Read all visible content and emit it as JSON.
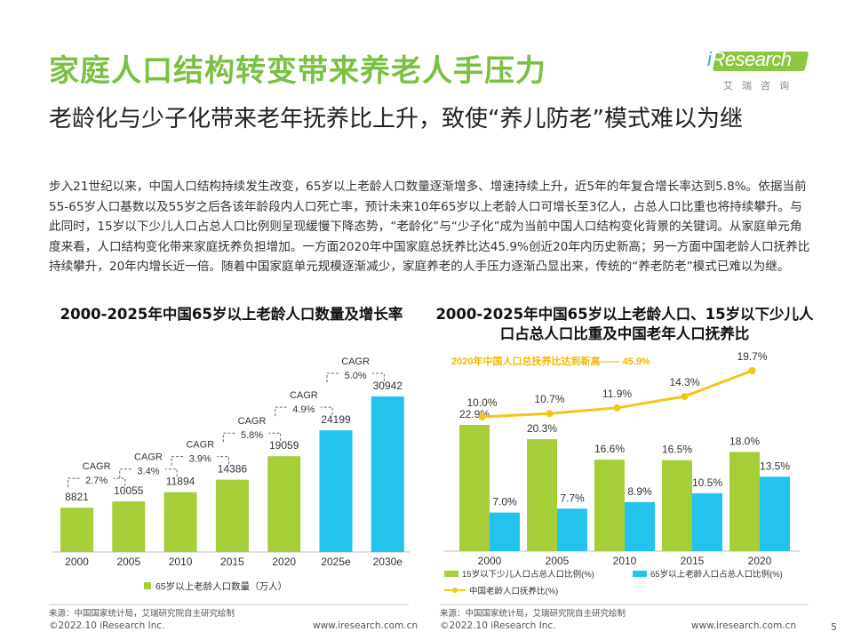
{
  "header": {
    "title": "家庭人口结构转变带来养老人手压力",
    "subtitle": "老龄化与少子化带来老年抚养比上升，致使“养儿防老”模式难以为继"
  },
  "logo": {
    "brand_i": "i",
    "brand_rest": "Research",
    "cn": "艾瑞咨询"
  },
  "body_paragraph": "步入21世纪以来，中国人口结构持续发生改变，65岁以上老龄人口数量逐渐增多、增速持续上升，近5年的年复合增长率达到5.8%。依据当前55-65岁人口基数以及55岁之后各该年龄段内人口死亡率，预计未来10年65岁以上老龄人口可增长至3亿人，占总人口比重也将持续攀升。与此同时，15岁以下少儿人口占总人口比例则呈现缓慢下降态势，“老龄化”与“少子化”成为当前中国人口结构变化背景的关键词。从家庭单元角度来看，人口结构变化带来家庭抚养负担增加。一方面2020年中国家庭总抚养比达45.9%创近20年内历史新高；另一方面中国老龄人口抚养比持续攀升，20年内增长近一倍。随着中国家庭单元规模逐渐减少，家庭养老的人手压力逐渐凸显出来，传统的“养老防老”模式已难以为继。",
  "chart_data": [
    {
      "type": "bar",
      "title": "2000-2025年中国65岁以上老龄人口数量及增长率",
      "categories": [
        "2000",
        "2005",
        "2010",
        "2015",
        "2020",
        "2025e",
        "2030e"
      ],
      "series": [
        {
          "name": "65岁以上老龄人口数量（万人）",
          "values": [
            8821,
            10055,
            11894,
            14386,
            19059,
            24199,
            30942
          ]
        }
      ],
      "estimate_from_index": 5,
      "cagr": [
        {
          "label": "CAGR",
          "value": "2.7%"
        },
        {
          "label": "CAGR",
          "value": "3.4%"
        },
        {
          "label": "CAGR",
          "value": "3.9%"
        },
        {
          "label": "CAGR",
          "value": "5.8%"
        },
        {
          "label": "CAGR",
          "value": "4.9%"
        },
        {
          "label": "CAGR",
          "value": "5.0%"
        }
      ],
      "ylim": [
        0,
        34000
      ],
      "legend": "bottom",
      "colors": {
        "actual": "#a6ce39",
        "estimate": "#22c3ec"
      }
    },
    {
      "type": "bar",
      "title": "2000-2025年中国65岁以上老龄人口、15岁以下少儿人口占总人口比重及中国老年人口抚养比",
      "categories": [
        "2000",
        "2005",
        "2010",
        "2015",
        "2020"
      ],
      "series": [
        {
          "name": "15岁以下少儿人口占总人口比例(%)",
          "type": "bar",
          "values": [
            22.9,
            20.3,
            16.6,
            16.5,
            18.0
          ],
          "labels": [
            "22.9%",
            "20.3%",
            "16.6%",
            "16.5%",
            "18.0%"
          ]
        },
        {
          "name": "65岁以上老龄人口占总人口比例(%)",
          "type": "bar",
          "values": [
            7.0,
            7.7,
            8.9,
            10.5,
            13.5
          ],
          "labels": [
            "7.0%",
            "7.7%",
            "8.9%",
            "10.5%",
            "13.5%"
          ]
        },
        {
          "name": "中国老龄人口抚养比(%)",
          "type": "line",
          "values": [
            10.0,
            10.7,
            11.9,
            14.3,
            19.7
          ],
          "labels": [
            "10.0%",
            "10.7%",
            "11.9%",
            "14.3%",
            "19.7%"
          ]
        }
      ],
      "annotation": "2020年中国人口总抚养比达到新高—— 45.9%",
      "legend": "bottom",
      "colors": {
        "youth": "#a6ce39",
        "elderly": "#22c3ec",
        "ratio": "#f5c518"
      }
    }
  ],
  "sources": [
    "来源：中国国家统计局，艾瑞研究院自主研究绘制",
    "来源：中国国家统计局，艾瑞研究院自主研究绘制"
  ],
  "footer": {
    "copyright_left": "©2022.10 iResearch Inc.",
    "url_left": "www.iresearch.com.cn",
    "copyright_right": "©2022.10 iResearch Inc.",
    "url_right": "www.iresearch.com.cn",
    "page": "5"
  }
}
